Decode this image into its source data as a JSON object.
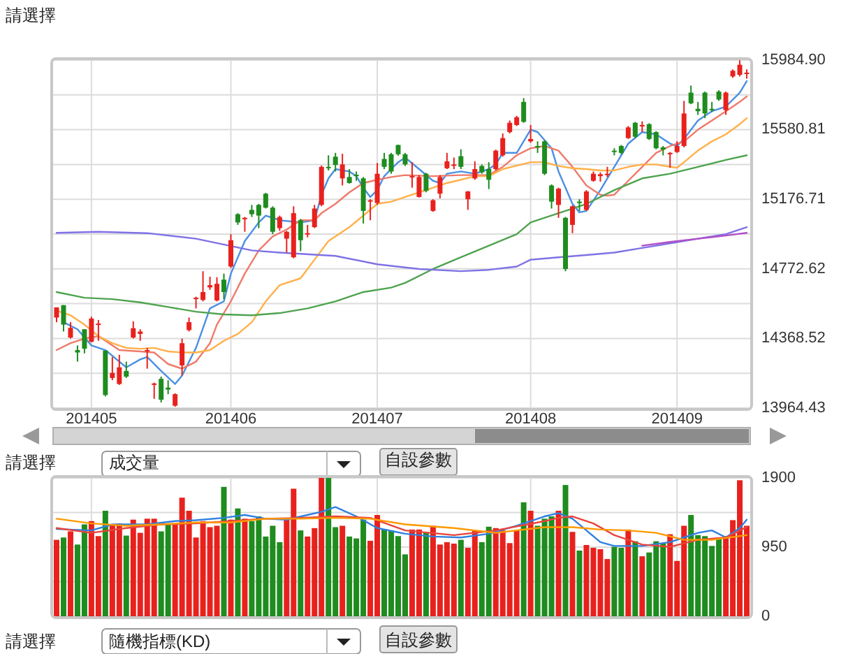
{
  "chart_data": [
    {
      "type": "candlestick",
      "categories": [
        null,
        null,
        null,
        null,
        null,
        "201405",
        null,
        null,
        null,
        null,
        null,
        null,
        null,
        null,
        null,
        null,
        null,
        null,
        null,
        null,
        null,
        null,
        null,
        null,
        null,
        "201406",
        null,
        null,
        null,
        null,
        null,
        null,
        null,
        null,
        null,
        null,
        null,
        null,
        null,
        null,
        null,
        null,
        null,
        null,
        null,
        null,
        "201407",
        null,
        null,
        null,
        null,
        null,
        null,
        null,
        null,
        null,
        null,
        null,
        null,
        null,
        null,
        null,
        null,
        null,
        null,
        null,
        null,
        null,
        "201408",
        null,
        null,
        null,
        null,
        null,
        null,
        null,
        null,
        null,
        null,
        null,
        null,
        null,
        null,
        null,
        null,
        null,
        null,
        null,
        null,
        "201409",
        null,
        null,
        null,
        null,
        null,
        null,
        null,
        null,
        null,
        null
      ],
      "ohlc": [
        [
          14490,
          14549,
          14463,
          14549
        ],
        [
          14562,
          14562,
          14409,
          14449
        ],
        [
          14374,
          14463,
          14368,
          14430
        ],
        [
          14301,
          14328,
          14234,
          14287
        ],
        [
          14422,
          14422,
          14282,
          14309
        ],
        [
          14349,
          14495,
          14346,
          14484
        ],
        [
          14449,
          14476,
          14355,
          14455
        ],
        [
          14298,
          14298,
          14032,
          14040
        ],
        [
          14139,
          14261,
          14126,
          14169
        ],
        [
          14104,
          14274,
          14099,
          14201
        ],
        [
          14180,
          14234,
          14139,
          14147
        ],
        [
          14374,
          14468,
          14368,
          14428
        ],
        [
          14395,
          14422,
          14355,
          14409
        ],
        [
          14293,
          14314,
          14193,
          14301
        ],
        [
          14099,
          14112,
          14018,
          14107
        ],
        [
          14134,
          14147,
          13997,
          14013
        ],
        [
          14083,
          14126,
          14045,
          14072
        ],
        [
          13978,
          14050,
          13972,
          14045
        ],
        [
          14212,
          14368,
          14153,
          14341
        ],
        [
          14417,
          14490,
          14409,
          14463
        ],
        [
          14600,
          14611,
          14543,
          14605
        ],
        [
          14592,
          14759,
          14584,
          14638
        ],
        [
          14665,
          14727,
          14651,
          14678
        ],
        [
          14589,
          14724,
          14584,
          14686
        ],
        [
          14710,
          14745,
          14597,
          14638
        ],
        [
          14786,
          14974,
          14778,
          14939
        ],
        [
          15090,
          15096,
          15028,
          15042
        ],
        [
          15063,
          15074,
          14988,
          15069
        ],
        [
          15115,
          15144,
          15074,
          15090
        ],
        [
          15144,
          15150,
          15009,
          15082
        ],
        [
          15209,
          15214,
          15123,
          15128
        ],
        [
          15128,
          15136,
          14974,
          14988
        ],
        [
          15009,
          15082,
          14993,
          15074
        ],
        [
          14948,
          14993,
          14867,
          14988
        ],
        [
          14840,
          15136,
          14834,
          15096
        ],
        [
          15055,
          15063,
          14875,
          14939
        ],
        [
          14972,
          15028,
          14956,
          14980
        ],
        [
          15015,
          15144,
          15009,
          15123
        ],
        [
          15144,
          15373,
          15136,
          15365
        ],
        [
          15365,
          15432,
          15344,
          15357
        ],
        [
          15424,
          15446,
          15338,
          15376
        ],
        [
          15298,
          15441,
          15257,
          15379
        ],
        [
          15306,
          15352,
          15268,
          15271
        ],
        [
          15319,
          15338,
          15284,
          15311
        ],
        [
          15298,
          15306,
          15036,
          15109
        ],
        [
          15163,
          15177,
          15055,
          15171
        ],
        [
          15155,
          15387,
          15144,
          15325
        ],
        [
          15411,
          15446,
          15352,
          15365
        ],
        [
          15438,
          15446,
          15325,
          15338
        ],
        [
          15492,
          15494,
          15430,
          15438
        ],
        [
          15438,
          15446,
          15370,
          15379
        ],
        [
          15306,
          15392,
          15244,
          15311
        ],
        [
          15190,
          15317,
          15187,
          15306
        ],
        [
          15325,
          15330,
          15217,
          15225
        ],
        [
          15109,
          15177,
          15104,
          15171
        ],
        [
          15209,
          15317,
          15182,
          15306
        ],
        [
          15357,
          15446,
          15352,
          15397
        ],
        [
          15373,
          15419,
          15352,
          15379
        ],
        [
          15427,
          15467,
          15352,
          15365
        ],
        [
          15177,
          15225,
          15115,
          15222
        ],
        [
          15298,
          15397,
          15290,
          15352
        ],
        [
          15370,
          15379,
          15325,
          15333
        ],
        [
          15352,
          15392,
          15236,
          15290
        ],
        [
          15352,
          15465,
          15344,
          15459
        ],
        [
          15432,
          15559,
          15424,
          15532
        ],
        [
          15567,
          15634,
          15559,
          15621
        ],
        [
          15608,
          15661,
          15602,
          15653
        ],
        [
          15742,
          15764,
          15621,
          15626
        ],
        [
          15513,
          15608,
          15505,
          15527
        ],
        [
          15486,
          15513,
          15446,
          15478
        ],
        [
          15513,
          15519,
          15317,
          15325
        ],
        [
          15257,
          15263,
          15123,
          15163
        ],
        [
          15144,
          15244,
          15069,
          15238
        ],
        [
          15069,
          15074,
          14759,
          14772
        ],
        [
          15028,
          15141,
          14980,
          15136
        ],
        [
          15163,
          15177,
          15109,
          15155
        ],
        [
          15115,
          15230,
          15109,
          15222
        ],
        [
          15284,
          15338,
          15279,
          15325
        ],
        [
          15311,
          15333,
          15279,
          15322
        ],
        [
          15319,
          15365,
          15306,
          15325
        ],
        [
          15459,
          15473,
          15432,
          15451
        ],
        [
          15486,
          15492,
          15438,
          15446
        ],
        [
          15532,
          15602,
          15527,
          15594
        ],
        [
          15621,
          15626,
          15532,
          15540
        ],
        [
          15602,
          15629,
          15567,
          15608
        ],
        [
          15613,
          15618,
          15521,
          15527
        ],
        [
          15567,
          15572,
          15467,
          15473
        ],
        [
          15478,
          15486,
          15432,
          15465
        ],
        [
          15438,
          15451,
          15360,
          15446
        ],
        [
          15451,
          15513,
          15446,
          15486
        ],
        [
          15486,
          15748,
          15478,
          15675
        ],
        [
          15796,
          15837,
          15729,
          15734
        ],
        [
          15702,
          15742,
          15667,
          15688
        ],
        [
          15796,
          15802,
          15648,
          15675
        ],
        [
          15702,
          15742,
          15683,
          15696
        ],
        [
          15802,
          15810,
          15748,
          15756
        ],
        [
          15694,
          15802,
          15667,
          15796
        ],
        [
          15890,
          15931,
          15882,
          15923
        ],
        [
          15899,
          15984,
          15890,
          15958
        ],
        [
          15904,
          15931,
          15877,
          15912
        ]
      ],
      "colors": [
        "#e8211d",
        "#1e8c1e",
        "#e8211d",
        "#1e8c1e",
        "#1e8c1e",
        "#e8211d",
        "#e8211d",
        "#1e8c1e",
        "#e8211d",
        "#e8211d",
        "#1e8c1e",
        "#e8211d",
        "#e8211d",
        "#e8211d",
        "#e8211d",
        "#1e8c1e",
        "#1e8c1e",
        "#e8211d",
        "#e8211d",
        "#e8211d",
        "#e8211d",
        "#e8211d",
        "#e8211d",
        "#e8211d",
        "#1e8c1e",
        "#e8211d",
        "#1e8c1e",
        "#e8211d",
        "#1e8c1e",
        "#1e8c1e",
        "#1e8c1e",
        "#1e8c1e",
        "#e8211d",
        "#e8211d",
        "#e8211d",
        "#1e8c1e",
        "#e8211d",
        "#e8211d",
        "#e8211d",
        "#1e8c1e",
        "#1e8c1e",
        "#e8211d",
        "#1e8c1e",
        "#1e8c1e",
        "#1e8c1e",
        "#e8211d",
        "#e8211d",
        "#1e8c1e",
        "#1e8c1e",
        "#1e8c1e",
        "#1e8c1e",
        "#e8211d",
        "#e8211d",
        "#1e8c1e",
        "#e8211d",
        "#e8211d",
        "#e8211d",
        "#e8211d",
        "#1e8c1e",
        "#e8211d",
        "#e8211d",
        "#1e8c1e",
        "#1e8c1e",
        "#e8211d",
        "#e8211d",
        "#e8211d",
        "#e8211d",
        "#1e8c1e",
        "#e8211d",
        "#1e8c1e",
        "#1e8c1e",
        "#1e8c1e",
        "#e8211d",
        "#1e8c1e",
        "#e8211d",
        "#1e8c1e",
        "#e8211d",
        "#e8211d",
        "#e8211d",
        "#e8211d",
        "#1e8c1e",
        "#1e8c1e",
        "#e8211d",
        "#1e8c1e",
        "#e8211d",
        "#1e8c1e",
        "#1e8c1e",
        "#1e8c1e",
        "#e8211d",
        "#e8211d",
        "#e8211d",
        "#1e8c1e",
        "#1e8c1e",
        "#1e8c1e",
        "#1e8c1e",
        "#1e8c1e",
        "#e8211d",
        "#e8211d",
        "#e8211d",
        "#e8211d"
      ],
      "series": [
        {
          "type": "line",
          "color": "#4a90e2",
          "values": [
            null,
            14463,
            null,
            14422,
            null,
            14328,
            null,
            14301,
            null,
            null,
            14201,
            null,
            14247,
            14261,
            null,
            14180,
            null,
            14104,
            14153,
            null,
            14314,
            null,
            14543,
            null,
            14584,
            14745,
            null,
            14934,
            null,
            15042,
            15082,
            15069,
            15055,
            null,
            null,
            15042,
            null,
            15055,
            15203,
            15298,
            15352,
            null,
            15338,
            15311,
            15244,
            15190,
            15230,
            15311,
            15352,
            15392,
            15419,
            null,
            15352,
            null,
            15284,
            15271,
            15325,
            null,
            15338,
            null,
            15325,
            null,
            15352,
            15379,
            15446,
            null,
            15446,
            null,
            15581,
            15567,
            null,
            15473,
            15338,
            null,
            15150,
            15101,
            15109,
            null,
            15230,
            null,
            15365,
            null,
            15500,
            null,
            15567,
            null,
            15554,
            null,
            15500,
            15486,
            15527,
            null,
            15634,
            null,
            15688,
            null,
            15715,
            null,
            15796,
            15863
          ]
        },
        {
          "type": "line",
          "color": "#ef7a6a",
          "values": [
            14301,
            null,
            14341,
            null,
            14368,
            null,
            14382,
            null,
            null,
            14301,
            null,
            null,
            14293,
            null,
            14287,
            null,
            14220,
            null,
            14193,
            null,
            14234,
            null,
            14341,
            14449,
            null,
            14584,
            null,
            14745,
            null,
            14880,
            null,
            14961,
            null,
            15001,
            null,
            15055,
            null,
            15055,
            15096,
            null,
            15150,
            null,
            15217,
            null,
            15271,
            null,
            15290,
            null,
            15306,
            null,
            15317,
            null,
            null,
            null,
            15311,
            null,
            null,
            null,
            15317,
            null,
            null,
            null,
            15317,
            null,
            15365,
            null,
            15432,
            null,
            15473,
            null,
            15486,
            null,
            15459,
            null,
            15365,
            null,
            15257,
            null,
            15203,
            15198,
            15203,
            null,
            15284,
            null,
            15365,
            null,
            15446,
            null,
            15486,
            null,
            15513,
            null,
            15581,
            null,
            15634,
            null,
            15688,
            null,
            15742,
            15774
          ]
        },
        {
          "type": "line",
          "color": "#ffb04a",
          "values": [
            14530,
            null,
            14503,
            null,
            14449,
            null,
            14382,
            null,
            14341,
            null,
            14314,
            null,
            14309,
            null,
            14314,
            null,
            14293,
            null,
            14287,
            null,
            14287,
            null,
            14301,
            null,
            14355,
            null,
            14395,
            null,
            14463,
            null,
            14584,
            null,
            14678,
            null,
            null,
            14718,
            null,
            14826,
            null,
            14934,
            null,
            null,
            15015,
            null,
            15082,
            null,
            15150,
            null,
            15163,
            null,
            15190,
            null,
            15217,
            null,
            15244,
            null,
            15271,
            null,
            15290,
            null,
            15311,
            null,
            15311,
            null,
            15352,
            null,
            null,
            null,
            15392,
            null,
            15392,
            null,
            15370,
            null,
            15357,
            null,
            15352,
            null,
            15344,
            null,
            15344,
            null,
            15365,
            null,
            15379,
            null,
            15379,
            null,
            15365,
            15360,
            15392,
            null,
            15459,
            null,
            15513,
            null,
            15554,
            null,
            15613,
            15648
          ]
        },
        {
          "type": "line",
          "color": "#4fa34f",
          "values": [
            14638,
            null,
            null,
            null,
            14605,
            null,
            null,
            null,
            14597,
            null,
            null,
            null,
            14578,
            null,
            null,
            null,
            14551,
            null,
            null,
            null,
            14524,
            null,
            null,
            null,
            14508,
            null,
            null,
            null,
            14503,
            null,
            null,
            null,
            14516,
            null,
            null,
            null,
            14543,
            null,
            null,
            null,
            14584,
            null,
            null,
            null,
            14638,
            null,
            null,
            null,
            14664,
            null,
            14691,
            null,
            null,
            null,
            14772,
            null,
            null,
            null,
            14840,
            null,
            null,
            null,
            14907,
            null,
            null,
            null,
            14974,
            null,
            15042,
            null,
            null,
            null,
            15096,
            null,
            null,
            null,
            15150,
            null,
            null,
            null,
            15230,
            null,
            null,
            null,
            15298,
            null,
            null,
            null,
            15325,
            null,
            null,
            null,
            15365,
            null,
            null,
            null,
            15405,
            null,
            null,
            15432
          ]
        },
        {
          "type": "line",
          "color": "#7f72e6",
          "values": [
            14982,
            null,
            null,
            null,
            null,
            null,
            14988,
            null,
            null,
            null,
            null,
            null,
            null,
            14980,
            null,
            null,
            null,
            null,
            null,
            null,
            14948,
            null,
            null,
            null,
            null,
            null,
            null,
            null,
            14880,
            null,
            null,
            null,
            14867,
            null,
            null,
            null,
            null,
            null,
            null,
            null,
            14848,
            null,
            null,
            null,
            null,
            null,
            14799,
            null,
            null,
            null,
            null,
            null,
            14772,
            null,
            null,
            null,
            null,
            null,
            14759,
            null,
            null,
            null,
            14767,
            null,
            null,
            null,
            14786,
            null,
            14826,
            null,
            null,
            null,
            14840,
            null,
            null,
            null,
            14853,
            null,
            null,
            null,
            14867,
            null,
            null,
            null,
            14894,
            null,
            null,
            null,
            14921,
            null,
            null,
            null,
            14948,
            null,
            null,
            null,
            14974,
            null,
            null,
            15015
          ]
        },
        {
          "type": "line",
          "color": "#b050c8",
          "values": [
            null,
            null,
            null,
            null,
            null,
            null,
            null,
            null,
            null,
            null,
            null,
            null,
            null,
            null,
            null,
            null,
            null,
            null,
            null,
            null,
            null,
            null,
            null,
            null,
            null,
            null,
            null,
            null,
            null,
            null,
            null,
            null,
            null,
            null,
            null,
            null,
            null,
            null,
            null,
            null,
            null,
            null,
            null,
            null,
            null,
            null,
            null,
            null,
            null,
            null,
            null,
            null,
            null,
            null,
            null,
            null,
            null,
            null,
            null,
            null,
            null,
            null,
            null,
            null,
            null,
            null,
            null,
            null,
            null,
            null,
            null,
            null,
            null,
            null,
            null,
            null,
            null,
            null,
            null,
            null,
            null,
            null,
            null,
            null,
            14907,
            null,
            null,
            null,
            14929,
            null,
            null,
            null,
            14948,
            null,
            null,
            null,
            14966,
            null,
            null,
            14982
          ]
        }
      ],
      "ylim": [
        13964.43,
        15984.9
      ],
      "yticks": [
        {
          "value": 13964.43,
          "label": "13964.43"
        },
        {
          "value": 14166.475,
          "label": null
        },
        {
          "value": 14368.52,
          "label": "14368.52"
        },
        {
          "value": 14570.57,
          "label": null
        },
        {
          "value": 14772.62,
          "label": "14772.62"
        },
        {
          "value": 14974.665,
          "label": null
        },
        {
          "value": 15176.71,
          "label": "15176.71"
        },
        {
          "value": 15378.76,
          "label": null
        },
        {
          "value": 15580.81,
          "label": "15580.81"
        },
        {
          "value": 15782.855,
          "label": null
        },
        {
          "value": 15984.9,
          "label": "15984.90"
        }
      ],
      "grid": true,
      "annotations": [
        "請選擇"
      ]
    },
    {
      "type": "bar",
      "categories": [
        null,
        null,
        null,
        null,
        null,
        "201405",
        null,
        null,
        null,
        null,
        null,
        null,
        null,
        null,
        null,
        null,
        null,
        null,
        null,
        null,
        null,
        null,
        null,
        null,
        null,
        "201406",
        null,
        null,
        null,
        null,
        null,
        null,
        null,
        null,
        null,
        null,
        null,
        null,
        null,
        null,
        null,
        null,
        null,
        null,
        null,
        null,
        "201407",
        null,
        null,
        null,
        null,
        null,
        null,
        null,
        null,
        null,
        null,
        null,
        null,
        null,
        null,
        null,
        null,
        null,
        null,
        null,
        null,
        null,
        "201408",
        null,
        null,
        null,
        null,
        null,
        null,
        null,
        null,
        null,
        null,
        null,
        null,
        null,
        null,
        null,
        null,
        null,
        null,
        null,
        null,
        "201409",
        null,
        null,
        null,
        null,
        null,
        null,
        null,
        null,
        null,
        null
      ],
      "values": [
        1050,
        1082,
        1166,
        985,
        1262,
        1307,
        1101,
        1449,
        1262,
        1275,
        1108,
        1327,
        1146,
        1340,
        1340,
        1166,
        1256,
        1262,
        1629,
        1449,
        1082,
        1307,
        1224,
        1243,
        1777,
        1327,
        1481,
        1340,
        1307,
        1372,
        1095,
        1243,
        1018,
        1352,
        1752,
        1179,
        1095,
        1211,
        1900,
        1900,
        1224,
        1243,
        1095,
        1069,
        1327,
        1037,
        1391,
        1198,
        1179,
        1101,
        850,
        1191,
        1191,
        1146,
        1243,
        985,
        1018,
        998,
        1050,
        940,
        1172,
        1018,
        1230,
        1211,
        1179,
        1005,
        1179,
        1565,
        1449,
        1243,
        1340,
        1372,
        1449,
        1803,
        1159,
        902,
        979,
        940,
        921,
        786,
        953,
        940,
        1191,
        1030,
        824,
        876,
        1030,
        998,
        1127,
        760,
        1243,
        1391,
        1114,
        1101,
        966,
        1082,
        1101,
        1320,
        1868,
        1243
      ],
      "colors": [
        "#e8211d",
        "#1e8c1e",
        "#e8211d",
        "#1e8c1e",
        "#1e8c1e",
        "#e8211d",
        "#e8211d",
        "#1e8c1e",
        "#e8211d",
        "#e8211d",
        "#1e8c1e",
        "#e8211d",
        "#e8211d",
        "#e8211d",
        "#e8211d",
        "#1e8c1e",
        "#1e8c1e",
        "#e8211d",
        "#e8211d",
        "#e8211d",
        "#e8211d",
        "#e8211d",
        "#e8211d",
        "#e8211d",
        "#1e8c1e",
        "#e8211d",
        "#1e8c1e",
        "#e8211d",
        "#1e8c1e",
        "#1e8c1e",
        "#1e8c1e",
        "#1e8c1e",
        "#1e8c1e",
        "#e8211d",
        "#e8211d",
        "#1e8c1e",
        "#e8211d",
        "#e8211d",
        "#e8211d",
        "#1e8c1e",
        "#1e8c1e",
        "#e8211d",
        "#1e8c1e",
        "#1e8c1e",
        "#1e8c1e",
        "#e8211d",
        "#e8211d",
        "#1e8c1e",
        "#1e8c1e",
        "#1e8c1e",
        "#1e8c1e",
        "#e8211d",
        "#e8211d",
        "#1e8c1e",
        "#e8211d",
        "#e8211d",
        "#e8211d",
        "#e8211d",
        "#1e8c1e",
        "#e8211d",
        "#e8211d",
        "#1e8c1e",
        "#1e8c1e",
        "#e8211d",
        "#e8211d",
        "#e8211d",
        "#e8211d",
        "#1e8c1e",
        "#e8211d",
        "#1e8c1e",
        "#1e8c1e",
        "#1e8c1e",
        "#e8211d",
        "#1e8c1e",
        "#e8211d",
        "#1e8c1e",
        "#e8211d",
        "#e8211d",
        "#e8211d",
        "#e8211d",
        "#1e8c1e",
        "#1e8c1e",
        "#e8211d",
        "#1e8c1e",
        "#e8211d",
        "#1e8c1e",
        "#1e8c1e",
        "#1e8c1e",
        "#e8211d",
        "#e8211d",
        "#e8211d",
        "#1e8c1e",
        "#1e8c1e",
        "#1e8c1e",
        "#1e8c1e",
        "#1e8c1e",
        "#e8211d",
        "#e8211d",
        "#e8211d",
        "#e8211d"
      ],
      "series": [
        {
          "type": "line",
          "color": "#2f80e0",
          "values": [
            1198,
            null,
            null,
            null,
            null,
            1179,
            null,
            null,
            1262,
            null,
            null,
            null,
            null,
            1262,
            null,
            null,
            null,
            1307,
            null,
            null,
            1320,
            null,
            null,
            null,
            1352,
            null,
            null,
            1391,
            null,
            null,
            1340,
            null,
            null,
            1327,
            null,
            null,
            1391,
            null,
            1436,
            null,
            1501,
            null,
            null,
            1372,
            null,
            null,
            1211,
            null,
            null,
            null,
            1133,
            null,
            null,
            null,
            1095,
            null,
            null,
            null,
            1082,
            null,
            null,
            null,
            1133,
            null,
            null,
            null,
            1243,
            null,
            null,
            null,
            1372,
            null,
            1417,
            null,
            1340,
            null,
            1179,
            null,
            1018,
            null,
            966,
            null,
            null,
            null,
            966,
            null,
            null,
            null,
            1018,
            null,
            1082,
            null,
            1146,
            null,
            1179,
            null,
            1082,
            null,
            1211,
            1327
          ]
        },
        {
          "type": "line",
          "color": "#e8453c",
          "values": [
            1211,
            null,
            null,
            null,
            null,
            1146,
            null,
            null,
            null,
            null,
            1211,
            null,
            null,
            null,
            null,
            1262,
            null,
            null,
            null,
            null,
            1275,
            null,
            null,
            null,
            null,
            1307,
            null,
            null,
            null,
            null,
            1340,
            null,
            null,
            null,
            null,
            1352,
            null,
            null,
            null,
            null,
            1372,
            null,
            null,
            null,
            null,
            1352,
            null,
            null,
            null,
            null,
            1179,
            null,
            null,
            null,
            null,
            null,
            null,
            1114,
            null,
            null,
            null,
            null,
            null,
            1179,
            null,
            null,
            null,
            null,
            null,
            null,
            1307,
            null,
            1352,
            null,
            1372,
            null,
            null,
            1275,
            null,
            null,
            1114,
            null,
            null,
            null,
            985,
            null,
            null,
            null,
            953,
            null,
            null,
            null,
            1050,
            null,
            null,
            null,
            1082,
            null,
            null,
            1224
          ]
        },
        {
          "type": "line",
          "color": "#ff9900",
          "values": [
            1340,
            null,
            null,
            null,
            null,
            1275,
            null,
            null,
            null,
            null,
            1243,
            null,
            null,
            null,
            null,
            1262,
            null,
            null,
            null,
            null,
            1288,
            null,
            null,
            null,
            null,
            1288,
            null,
            null,
            null,
            null,
            1340,
            null,
            null,
            null,
            null,
            1340,
            null,
            null,
            null,
            null,
            1352,
            null,
            null,
            null,
            null,
            1340,
            null,
            null,
            null,
            null,
            1262,
            null,
            null,
            null,
            null,
            null,
            null,
            1211,
            null,
            null,
            null,
            null,
            null,
            1146,
            null,
            null,
            null,
            null,
            null,
            null,
            1224,
            null,
            null,
            null,
            1224,
            null,
            null,
            null,
            1191,
            null,
            null,
            null,
            1179,
            null,
            null,
            null,
            1146,
            null,
            null,
            null,
            1050,
            null,
            null,
            null,
            1050,
            null,
            null,
            null,
            null,
            1114
          ]
        }
      ],
      "ylim": [
        0,
        1900
      ],
      "yticks": [
        0,
        {
          "value": 475,
          "label": null
        },
        950,
        {
          "value": 1425,
          "label": null
        },
        1900
      ],
      "grid": true,
      "tick_labels": "y",
      "annotations": [
        "請選擇",
        "成交量",
        "自設參數",
        "請選擇",
        "隨機指標(KD)",
        "自設參數"
      ]
    }
  ]
}
